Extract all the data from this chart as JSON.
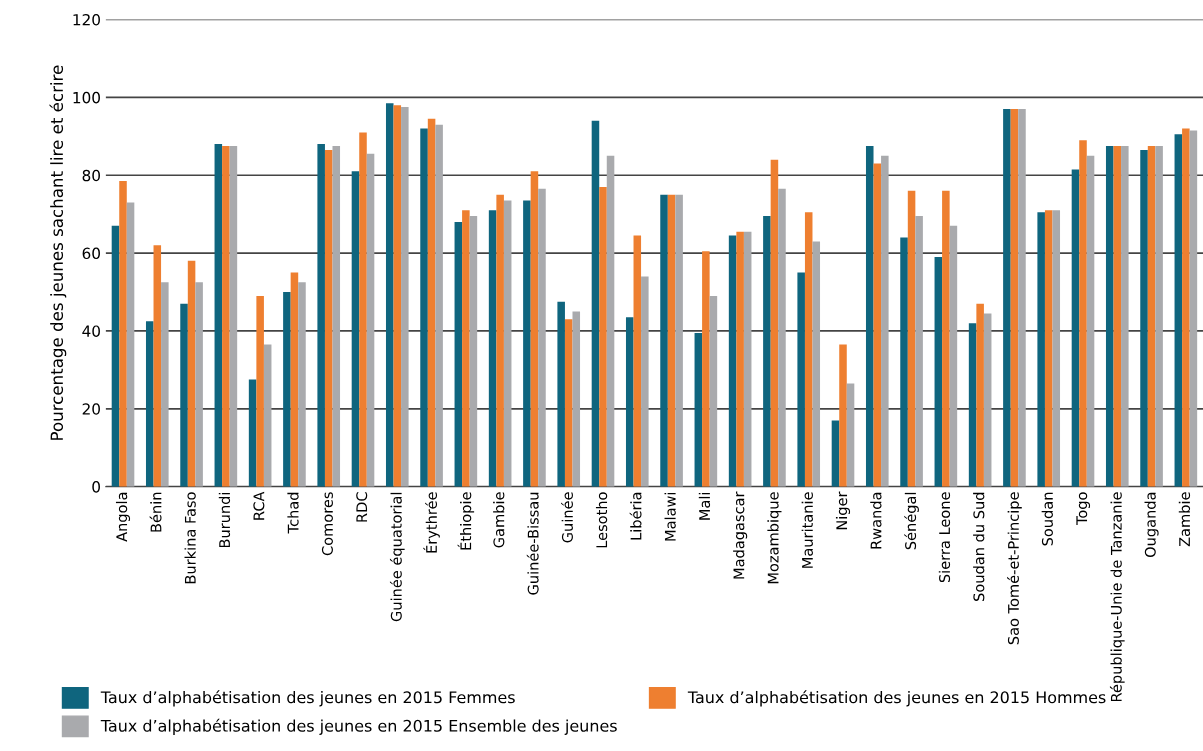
{
  "chart_data": {
    "type": "bar",
    "ylabel": "Pourcentage des jeunes sachant lire et écrire",
    "categories": [
      "Angola",
      "Bénin",
      "Burkina Faso",
      "Burundi",
      "RCA",
      "Tchad",
      "Comores",
      "RDC",
      "Guinée équatorial",
      "Érythrée",
      "Éthiopie",
      "Gambie",
      "Guinée-Bissau",
      "Guinée",
      "Lesotho",
      "Libéria",
      "Malawi",
      "Mali",
      "Madagascar",
      "Mozambique",
      "Mauritanie",
      "Niger",
      "Rwanda",
      "Sénégal",
      "Sierra Leone",
      "Soudan du Sud",
      "Sao Tomé-et-Principe",
      "Soudan",
      "Togo",
      "République-Unie de Tanzanie",
      "Ouganda",
      "Zambie"
    ],
    "series": [
      {
        "name": "Taux d’alphabétisation des jeunes en 2015 Femmes",
        "color": "#0f657e",
        "values": [
          67,
          42.5,
          47,
          88,
          27.5,
          50,
          88,
          81,
          98.5,
          92,
          68,
          71,
          73.5,
          47.5,
          94,
          43.5,
          75,
          39.5,
          64.5,
          69.5,
          55,
          17,
          87.5,
          64,
          59,
          42,
          97,
          70.5,
          81.5,
          87.5,
          86.5,
          90.5
        ]
      },
      {
        "name": "Taux d’alphabétisation des jeunes en 2015 Hommes",
        "color": "#ee7f30",
        "values": [
          78.5,
          62,
          58,
          87.5,
          49,
          55,
          86.5,
          91,
          98,
          94.5,
          71,
          75,
          81,
          43,
          77,
          64.5,
          75,
          60.5,
          65.5,
          84,
          70.5,
          36.5,
          83,
          76,
          76,
          47,
          97,
          71,
          89,
          87.5,
          87.5,
          92
        ]
      },
      {
        "name": "Taux d’alphabétisation des jeunes en 2015 Ensemble des jeunes",
        "color": "#a9aaad",
        "values": [
          73,
          52.5,
          52.5,
          87.5,
          36.5,
          52.5,
          87.5,
          85.5,
          97.5,
          93,
          69.5,
          73.5,
          76.5,
          45,
          85,
          54,
          75,
          49,
          65.5,
          76.5,
          63,
          26.5,
          85,
          69.5,
          67,
          44.5,
          97,
          71,
          85,
          87.5,
          87.5,
          91.5
        ]
      }
    ],
    "ylim": [
      0,
      120
    ],
    "yticks": [
      0,
      20,
      40,
      60,
      80,
      100,
      120
    ],
    "grid": "y",
    "legend": "bottom"
  }
}
